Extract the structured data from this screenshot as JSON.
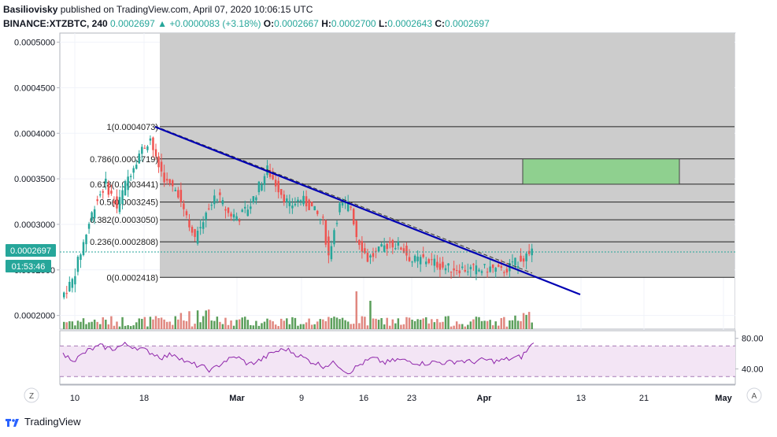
{
  "header": {
    "author": "Basiliovisky",
    "published": "published on TradingView.com, April 07, 2020 10:06:15 UTC",
    "symbol": "BINANCE:XTZBTC, 240",
    "last": "0.0002697",
    "arrow": "▲",
    "change": "+0.0000083 (+3.18%)",
    "o_label": "O:",
    "o": "0.0002667",
    "h_label": "H:",
    "h": "0.0002700",
    "l_label": "L:",
    "l": "0.0002643",
    "c_label": "C:",
    "c": "0.0002697"
  },
  "price_tag": {
    "value": "0.0002697",
    "countdown": "01:53:46"
  },
  "footer": {
    "brand": "TradingView"
  },
  "colors": {
    "up": "#26a69a",
    "down": "#ef5350",
    "vol_up": "#5a9e5a",
    "vol_down": "#e0877f",
    "trend": "#0000b3",
    "fib_zone": "#cccccc",
    "target_box": "#8fd08f",
    "rsi": "#8e24aa",
    "rsi_band": "#f3e5f5"
  },
  "chart_data": [
    {
      "type": "candlestick",
      "title": "BINANCE:XTZBTC, 240",
      "x_ticks": [
        "10",
        "18",
        "Mar",
        "9",
        "16",
        "23",
        "Apr",
        "13",
        "21",
        "May"
      ],
      "y_ticks": [
        "0.0005000",
        "0.0004500",
        "0.0004000",
        "0.0003500",
        "0.0003000",
        "0.0002500",
        "0.0002000"
      ],
      "ylim": [
        0.000185,
        0.00051
      ],
      "last_price": 0.0002697,
      "fibonacci": [
        {
          "label": "1(0.0004073)",
          "value": 0.0004073
        },
        {
          "label": "0.786(0.0003719)",
          "value": 0.0003719
        },
        {
          "label": "0.618(0.0003441)",
          "value": 0.0003441
        },
        {
          "label": "0.5(0.0003245)",
          "value": 0.0003245
        },
        {
          "label": "0.382(0.0003050)",
          "value": 0.000305
        },
        {
          "label": "0.236(0.0002808)",
          "value": 0.0002808
        },
        {
          "label": "0(0.0002418)",
          "value": 0.0002418
        }
      ],
      "target_zone": {
        "low": 0.0003441,
        "high": 0.0003719
      },
      "trendline": {
        "start": 0.000407,
        "end": 0.000223
      },
      "price_path": [
        [
          0,
          0.00022
        ],
        [
          4,
          0.000238
        ],
        [
          8,
          0.00028
        ],
        [
          12,
          0.000322
        ],
        [
          16,
          0.000345
        ],
        [
          20,
          0.000318
        ],
        [
          24,
          0.000352
        ],
        [
          28,
          0.000378
        ],
        [
          32,
          0.000395
        ],
        [
          34,
          0.00037
        ],
        [
          38,
          0.000345
        ],
        [
          42,
          0.000335
        ],
        [
          46,
          0.000302
        ],
        [
          48,
          0.000282
        ],
        [
          52,
          0.000315
        ],
        [
          56,
          0.000332
        ],
        [
          60,
          0.000312
        ],
        [
          64,
          0.000308
        ],
        [
          68,
          0.000322
        ],
        [
          72,
          0.000348
        ],
        [
          74,
          0.00036
        ],
        [
          78,
          0.00034
        ],
        [
          82,
          0.00032
        ],
        [
          86,
          0.000328
        ],
        [
          90,
          0.000318
        ],
        [
          94,
          0.000302
        ],
        [
          96,
          0.000265
        ],
        [
          98,
          0.000295
        ],
        [
          100,
          0.00032
        ],
        [
          104,
          0.00032
        ],
        [
          106,
          0.000288
        ],
        [
          110,
          0.000262
        ],
        [
          114,
          0.00027
        ],
        [
          118,
          0.00028
        ],
        [
          122,
          0.000275
        ],
        [
          126,
          0.00026
        ],
        [
          130,
          0.000262
        ],
        [
          134,
          0.000258
        ],
        [
          138,
          0.000252
        ],
        [
          142,
          0.000252
        ],
        [
          146,
          0.000251
        ],
        [
          150,
          0.00025
        ],
        [
          154,
          0.000252
        ],
        [
          158,
          0.000248
        ],
        [
          162,
          0.000255
        ],
        [
          166,
          0.000265
        ],
        [
          169,
          0.000268
        ]
      ]
    },
    {
      "type": "line",
      "title": "RSI",
      "y_ticks": [
        "80.00",
        "40.00"
      ],
      "ylim": [
        20,
        90
      ],
      "bands": [
        70,
        30
      ],
      "values": [
        58,
        52,
        64,
        70,
        66,
        72,
        68,
        62,
        55,
        60,
        48,
        44,
        38,
        50,
        56,
        46,
        52,
        62,
        66,
        58,
        50,
        44,
        48,
        35,
        46,
        54,
        48,
        52,
        50,
        47,
        49,
        48,
        51,
        49,
        52,
        50,
        53,
        56,
        74
      ]
    }
  ]
}
